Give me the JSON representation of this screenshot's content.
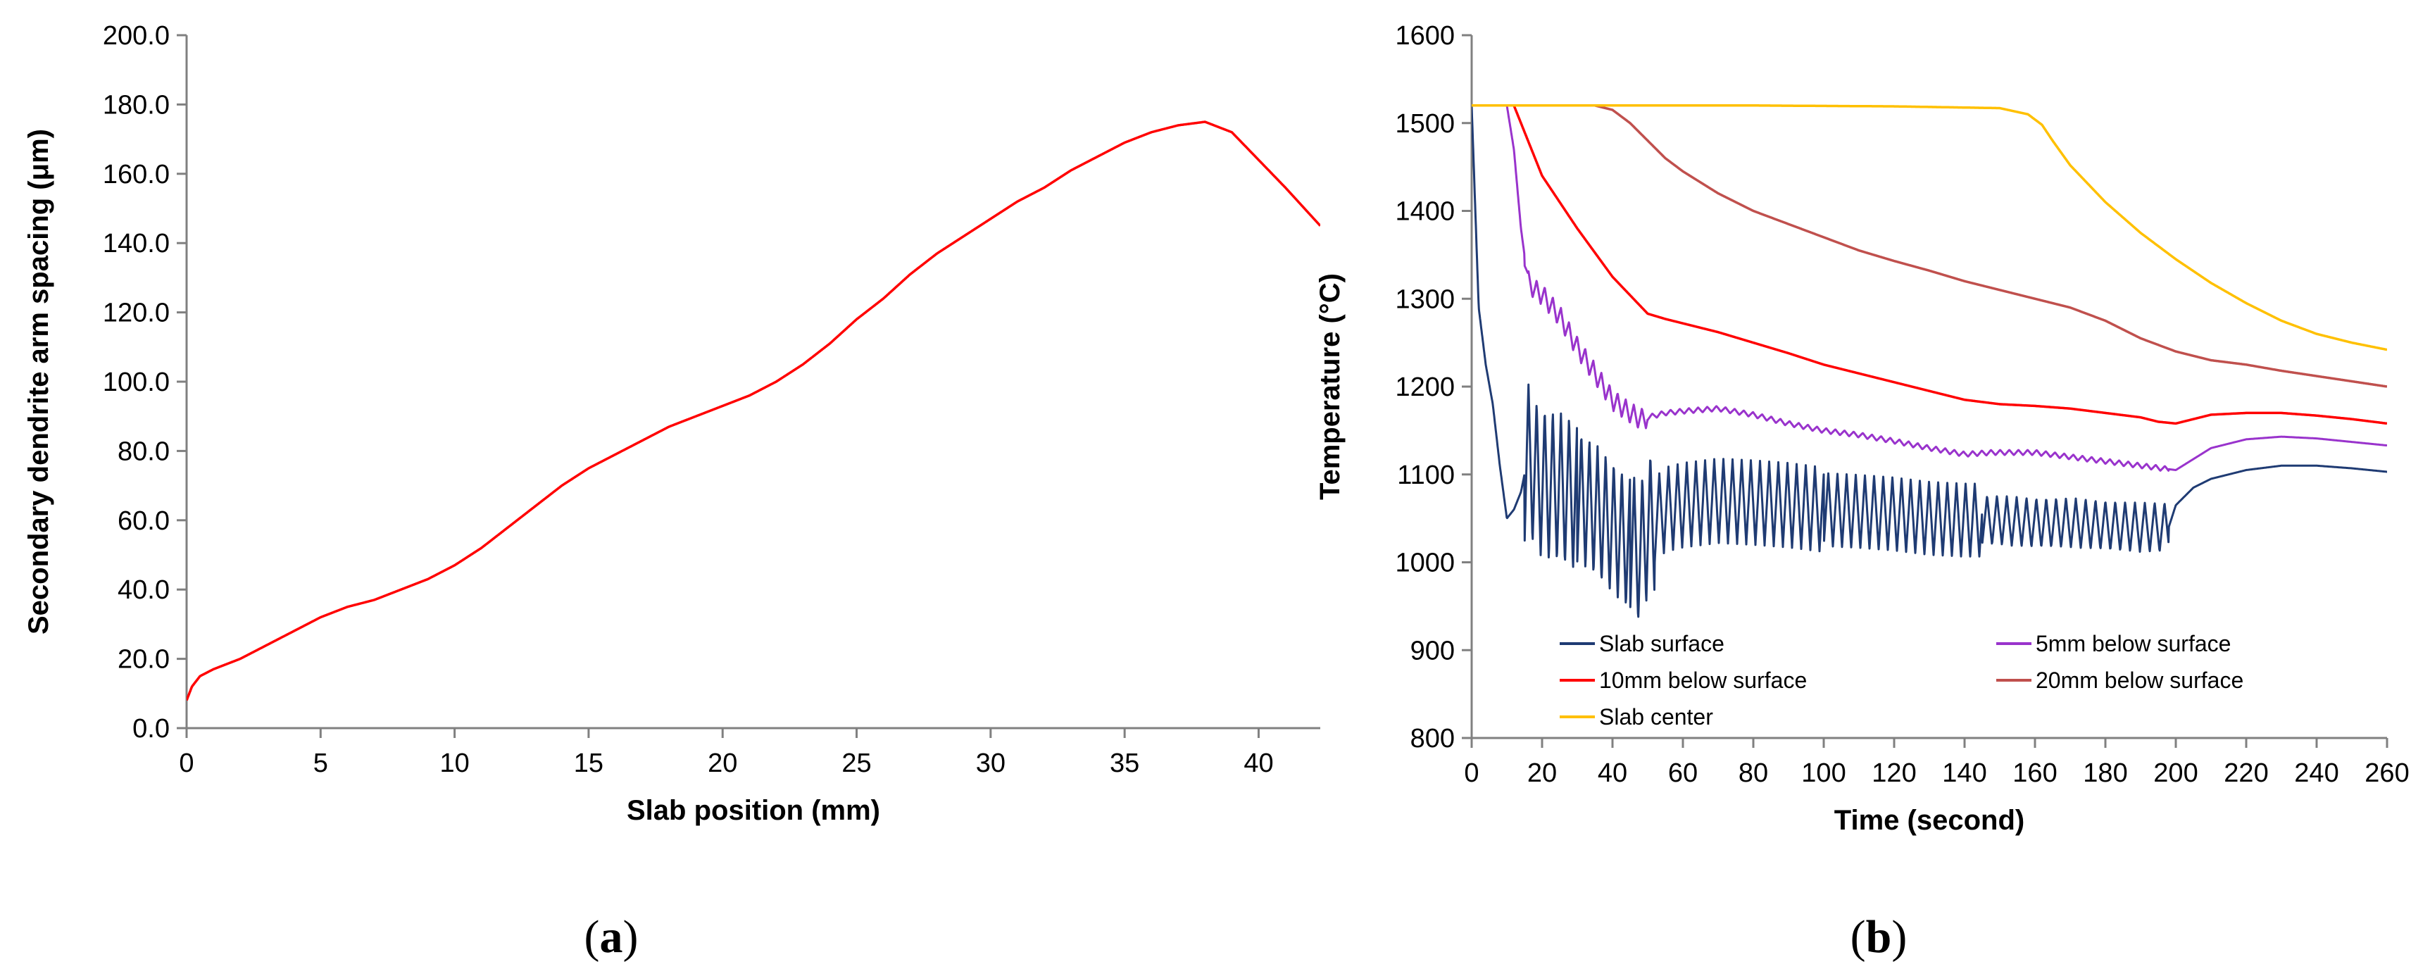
{
  "chart_data": [
    {
      "type": "line",
      "panel_label": "a",
      "title": "",
      "xlabel": "Slab position (mm)",
      "ylabel": "Secondary dendrite arm spacing (μm)",
      "xlim": [
        0,
        42.3
      ],
      "ylim": [
        0,
        200
      ],
      "xticks": [
        0,
        5,
        10,
        15,
        20,
        25,
        30,
        35,
        40
      ],
      "yticks": [
        0,
        20,
        40,
        60,
        80,
        100,
        120,
        140,
        160,
        180,
        200
      ],
      "xtick_labels": [
        "0",
        "5",
        "10",
        "15",
        "20",
        "25",
        "30",
        "35",
        "40"
      ],
      "ytick_labels": [
        "0.0",
        "20.0",
        "40.0",
        "60.0",
        "80.0",
        "100.0",
        "120.0",
        "140.0",
        "160.0",
        "180.0",
        "200.0"
      ],
      "grid": false,
      "series": [
        {
          "name": "Secondary dendrite arm spacing",
          "color": "#ff0000",
          "x": [
            0,
            0.2,
            0.5,
            1,
            2,
            3,
            4,
            5,
            6,
            7,
            8,
            9,
            10,
            11,
            12,
            13,
            14,
            15,
            16,
            17,
            18,
            19,
            20,
            21,
            22,
            23,
            24,
            25,
            26,
            27,
            28,
            29,
            30,
            31,
            32,
            33,
            34,
            35,
            36,
            37,
            38,
            39,
            40,
            41,
            42.3
          ],
          "y": [
            8,
            12,
            15,
            17,
            20,
            24,
            28,
            32,
            35,
            37,
            40,
            43,
            47,
            52,
            58,
            64,
            70,
            75,
            79,
            83,
            87,
            90,
            93,
            96,
            100,
            105,
            111,
            118,
            124,
            131,
            137,
            142,
            147,
            152,
            156,
            161,
            165,
            169,
            172,
            174,
            175,
            172,
            164,
            156,
            145
          ]
        }
      ]
    },
    {
      "type": "line",
      "panel_label": "b",
      "title": "",
      "xlabel": "Time (second)",
      "ylabel": "Temperature (°C)",
      "xlim": [
        0,
        260
      ],
      "ylim": [
        800,
        1600
      ],
      "xticks": [
        0,
        20,
        40,
        60,
        80,
        100,
        120,
        140,
        160,
        180,
        200,
        220,
        240,
        260
      ],
      "yticks": [
        800,
        900,
        1000,
        1100,
        1200,
        1300,
        1400,
        1500,
        1600
      ],
      "xtick_labels": [
        "0",
        "20",
        "40",
        "60",
        "80",
        "100",
        "120",
        "140",
        "160",
        "180",
        "200",
        "220",
        "240",
        "260"
      ],
      "ytick_labels": [
        "800",
        "900",
        "1000",
        "1100",
        "1200",
        "1300",
        "1400",
        "1500",
        "1600"
      ],
      "grid": false,
      "legend_position": "bottom-center",
      "series": [
        {
          "name": "Slab surface",
          "color": "#1f3b73",
          "x": [
            0,
            2,
            4,
            6,
            8,
            10,
            12,
            14,
            16,
            18,
            20,
            25,
            30,
            35,
            40,
            45,
            48,
            50,
            55,
            60,
            70,
            80,
            90,
            100,
            110,
            120,
            130,
            140,
            150,
            160,
            170,
            180,
            190,
            198,
            200,
            205,
            210,
            220,
            230,
            240,
            250,
            260
          ],
          "y": [
            1520,
            1290,
            1225,
            1180,
            1110,
            1050,
            1060,
            1080,
            1120,
            1100,
            1090,
            1085,
            1075,
            1060,
            1040,
            1020,
            1010,
            1040,
            1060,
            1065,
            1070,
            1068,
            1065,
            1060,
            1058,
            1055,
            1050,
            1048,
            1048,
            1045,
            1045,
            1042,
            1040,
            1040,
            1065,
            1085,
            1095,
            1105,
            1110,
            1110,
            1107,
            1103
          ],
          "oscillation": [
            {
              "t_start": 15,
              "t_end": 30,
              "period": 2.3,
              "amplitude": 85
            },
            {
              "t_start": 30,
              "t_end": 45,
              "period": 2.3,
              "amplitude": 75
            },
            {
              "t_start": 45,
              "t_end": 52,
              "period": 2.3,
              "amplitude": 80
            },
            {
              "t_start": 52,
              "t_end": 100,
              "period": 2.6,
              "amplitude": 48
            },
            {
              "t_start": 100,
              "t_end": 145,
              "period": 2.6,
              "amplitude": 42
            },
            {
              "t_start": 145,
              "t_end": 198,
              "period": 2.8,
              "amplitude": 28
            }
          ]
        },
        {
          "name": "5mm below surface",
          "color": "#9933cc",
          "x": [
            0,
            10,
            12,
            14,
            16,
            18,
            20,
            25,
            30,
            35,
            40,
            45,
            48,
            50,
            55,
            60,
            70,
            80,
            90,
            100,
            110,
            120,
            130,
            140,
            148,
            160,
            170,
            180,
            190,
            200,
            210,
            220,
            230,
            240,
            250,
            260
          ],
          "y": [
            1520,
            1520,
            1470,
            1380,
            1320,
            1310,
            1305,
            1280,
            1245,
            1215,
            1185,
            1170,
            1163,
            1165,
            1170,
            1172,
            1175,
            1168,
            1158,
            1150,
            1145,
            1138,
            1130,
            1123,
            1125,
            1125,
            1120,
            1115,
            1110,
            1105,
            1130,
            1140,
            1143,
            1141,
            1137,
            1133
          ],
          "oscillation": [
            {
              "t_start": 15,
              "t_end": 50,
              "period": 2.3,
              "amplitude": 12
            },
            {
              "t_start": 50,
              "t_end": 198,
              "period": 2.6,
              "amplitude": 3
            }
          ]
        },
        {
          "name": "10mm below surface",
          "color": "#ff0000",
          "x": [
            0,
            12,
            15,
            20,
            30,
            40,
            50,
            55,
            60,
            70,
            80,
            90,
            100,
            110,
            120,
            130,
            140,
            150,
            160,
            170,
            180,
            190,
            195,
            200,
            205,
            210,
            220,
            230,
            240,
            250,
            260
          ],
          "y": [
            1520,
            1520,
            1490,
            1440,
            1380,
            1325,
            1283,
            1277,
            1272,
            1262,
            1250,
            1238,
            1225,
            1215,
            1205,
            1195,
            1185,
            1180,
            1178,
            1175,
            1170,
            1165,
            1160,
            1158,
            1163,
            1168,
            1170,
            1170,
            1167,
            1163,
            1158
          ]
        },
        {
          "name": "20mm below surface",
          "color": "#c0504d",
          "x": [
            0,
            35,
            40,
            45,
            50,
            55,
            60,
            70,
            80,
            90,
            100,
            110,
            120,
            130,
            140,
            150,
            160,
            170,
            180,
            190,
            200,
            210,
            220,
            230,
            240,
            250,
            260
          ],
          "y": [
            1520,
            1520,
            1515,
            1500,
            1480,
            1460,
            1445,
            1420,
            1400,
            1385,
            1370,
            1355,
            1343,
            1332,
            1320,
            1310,
            1300,
            1290,
            1275,
            1255,
            1240,
            1230,
            1225,
            1218,
            1212,
            1206,
            1200
          ]
        },
        {
          "name": "Slab center",
          "color": "#ffc000",
          "x": [
            0,
            40,
            80,
            120,
            150,
            158,
            162,
            165,
            170,
            180,
            190,
            200,
            210,
            220,
            230,
            240,
            250,
            260
          ],
          "y": [
            1520,
            1520,
            1520,
            1519,
            1517,
            1510,
            1498,
            1480,
            1452,
            1410,
            1375,
            1345,
            1318,
            1295,
            1275,
            1260,
            1250,
            1242
          ]
        }
      ]
    }
  ]
}
